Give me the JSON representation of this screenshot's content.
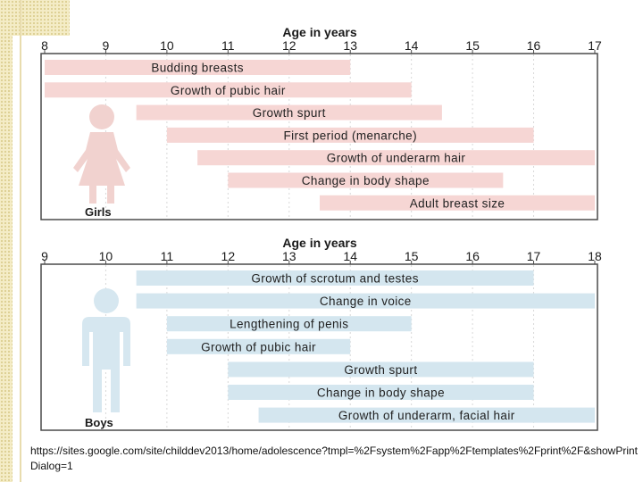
{
  "chart_data": [
    {
      "type": "bar",
      "subtype": "range-timeline",
      "title": "Age in years",
      "group_label": "Girls",
      "bar_color": "#f6d6d4",
      "axis_ticks": [
        8,
        9,
        10,
        11,
        12,
        13,
        14,
        15,
        16,
        17
      ],
      "xlim": [
        8,
        17
      ],
      "bars": [
        {
          "label": "Budding breasts",
          "start": 8,
          "end": 13
        },
        {
          "label": "Growth of pubic hair",
          "start": 8,
          "end": 14
        },
        {
          "label": "Growth spurt",
          "start": 9.5,
          "end": 14.5
        },
        {
          "label": "First period (menarche)",
          "start": 10,
          "end": 16
        },
        {
          "label": "Growth of underarm hair",
          "start": 10.5,
          "end": 17
        },
        {
          "label": "Change in body shape",
          "start": 11,
          "end": 15.5
        },
        {
          "label": "Adult breast size",
          "start": 12.5,
          "end": 17
        }
      ]
    },
    {
      "type": "bar",
      "subtype": "range-timeline",
      "title": "Age in years",
      "group_label": "Boys",
      "bar_color": "#d4e6ef",
      "axis_ticks": [
        9,
        10,
        11,
        12,
        13,
        14,
        15,
        16,
        17,
        18
      ],
      "xlim": [
        9,
        18
      ],
      "bars": [
        {
          "label": "Growth of scrotum and testes",
          "start": 10.5,
          "end": 17
        },
        {
          "label": "Change in voice",
          "start": 10.5,
          "end": 18
        },
        {
          "label": "Lengthening of penis",
          "start": 11,
          "end": 15
        },
        {
          "label": "Growth of pubic hair",
          "start": 11,
          "end": 14
        },
        {
          "label": "Growth spurt",
          "start": 12,
          "end": 17
        },
        {
          "label": "Change in body shape",
          "start": 12,
          "end": 17
        },
        {
          "label": "Growth of underarm, facial hair",
          "start": 12.5,
          "end": 18
        }
      ]
    }
  ],
  "source": {
    "url": "https://sites.google.com/site/childdev2013/home/adolescence?tmpl=%2Fsystem%2Fapp%2Ftemplates%2Fprint%2F&showPrintDialog=1"
  },
  "icons": {
    "girls": "girl-figure-icon",
    "boys": "boy-figure-icon"
  },
  "colors": {
    "figure": "#f1d2cf",
    "boy_figure": "#d6e7f0",
    "frame": "#4a4a4a",
    "grid": "#d8d8d8"
  }
}
